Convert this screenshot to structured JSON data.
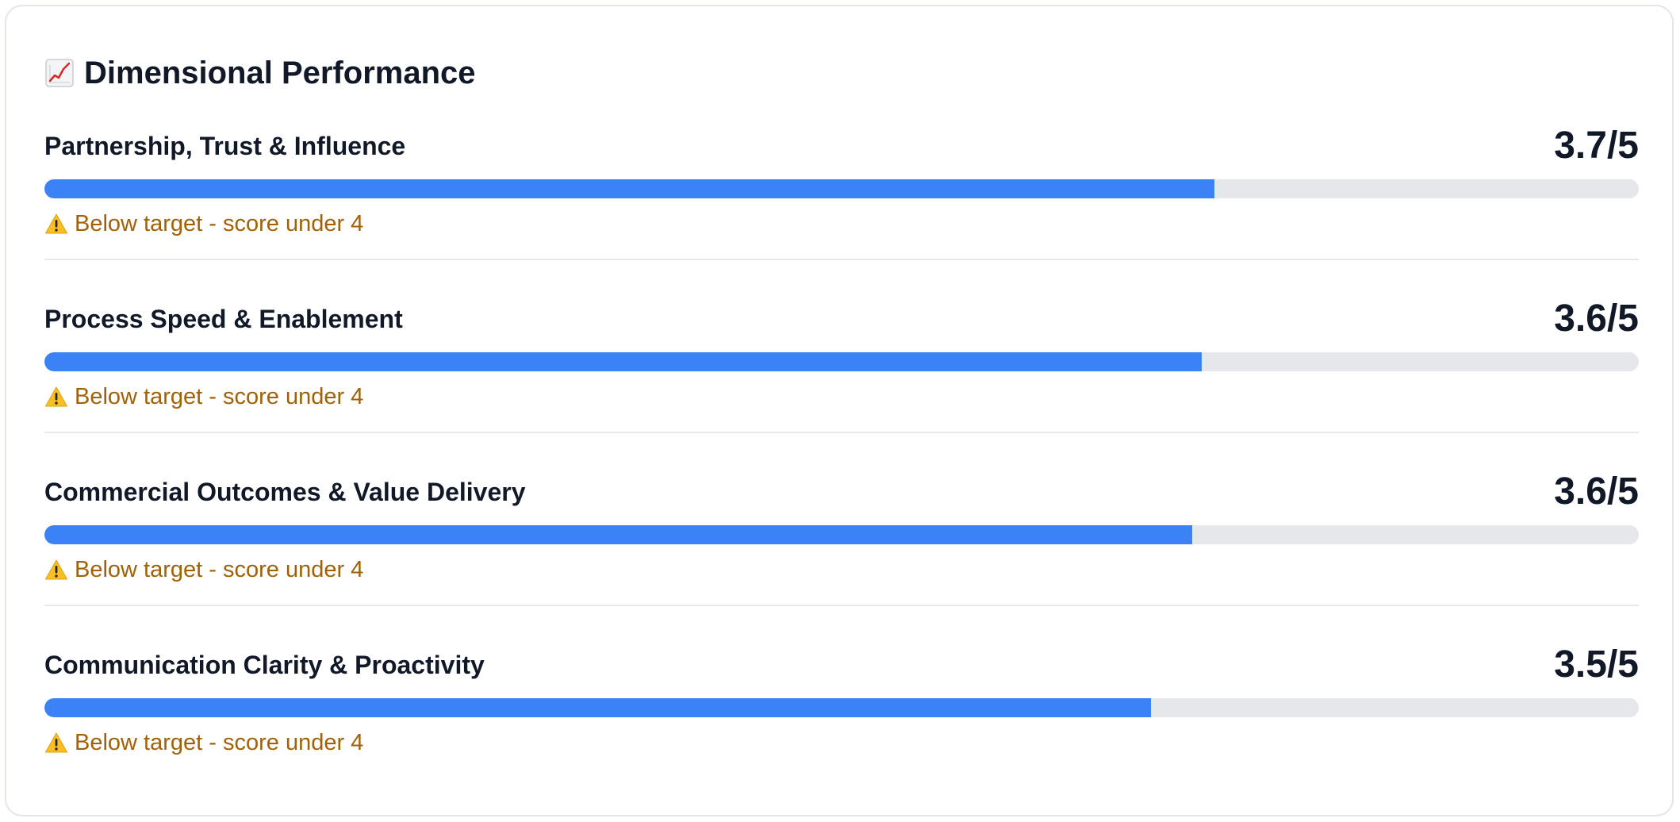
{
  "card": {
    "title": "Dimensional Performance",
    "title_icon": "chart-increasing-icon"
  },
  "colors": {
    "bar_fill": "#3b82f6",
    "bar_track": "#e5e7eb",
    "warning_text": "#a16207",
    "warning_icon": "#fbbf24"
  },
  "dimensions": [
    {
      "name": "Partnership, Trust & Influence",
      "score": "3.7/5",
      "value": 3.7,
      "max": 5,
      "progress": 0.734,
      "warning_icon": "warning-icon",
      "warning": "Below target - score under 4"
    },
    {
      "name": "Process Speed & Enablement",
      "score": "3.6/5",
      "value": 3.6,
      "max": 5,
      "progress": 0.726,
      "warning_icon": "warning-icon",
      "warning": "Below target - score under 4"
    },
    {
      "name": "Commercial Outcomes & Value Delivery",
      "score": "3.6/5",
      "value": 3.6,
      "max": 5,
      "progress": 0.72,
      "warning_icon": "warning-icon",
      "warning": "Below target - score under 4"
    },
    {
      "name": "Communication Clarity & Proactivity",
      "score": "3.5/5",
      "value": 3.5,
      "max": 5,
      "progress": 0.694,
      "warning_icon": "warning-icon",
      "warning": "Below target - score under 4"
    }
  ]
}
